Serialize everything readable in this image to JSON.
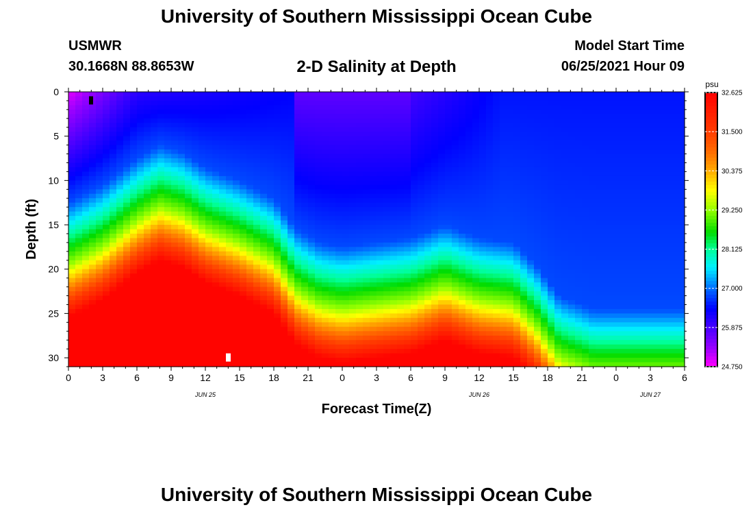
{
  "header": {
    "title": "University of Southern Mississippi Ocean Cube",
    "station": "USMWR",
    "coordinates": "30.1668N  88.8653W",
    "subtitle": "2-D Salinity at Depth",
    "start_label": "Model Start Time",
    "start_time": "06/25/2021 Hour 09"
  },
  "footer": {
    "title": "University of Southern Mississippi Ocean Cube"
  },
  "chart_data": {
    "type": "heatmap",
    "title": "2-D Salinity at Depth",
    "xlabel": "Forecast Time(Z)",
    "ylabel": "Depth (ft)",
    "x_range_hours": [
      0,
      54
    ],
    "y_range_ft": [
      0,
      31
    ],
    "x_tick_labels": [
      "0",
      "3",
      "6",
      "9",
      "12",
      "15",
      "18",
      "21",
      "0",
      "3",
      "6",
      "9",
      "12",
      "15",
      "18",
      "21",
      "0",
      "3",
      "6"
    ],
    "date_labels": [
      {
        "hour": 12,
        "label": "JUN 25"
      },
      {
        "hour": 36,
        "label": "JUN 26"
      },
      {
        "hour": 51,
        "label": "JUN 27"
      }
    ],
    "y_ticks": [
      0,
      5,
      10,
      15,
      20,
      25,
      30
    ],
    "colorbar": {
      "units": "psu",
      "min": 24.75,
      "max": 32.625,
      "tick_labels": [
        "32.625",
        "31.500",
        "30.375",
        "29.250",
        "28.125",
        "27.000",
        "25.875",
        "24.750"
      ]
    },
    "isohaline_29psu_depth_ft": [
      {
        "hour": 0,
        "depth": 19.5
      },
      {
        "hour": 3,
        "depth": 17.5
      },
      {
        "hour": 6,
        "depth": 14.5
      },
      {
        "hour": 8,
        "depth": 13.0
      },
      {
        "hour": 10,
        "depth": 13.8
      },
      {
        "hour": 12,
        "depth": 15.5
      },
      {
        "hour": 15,
        "depth": 17.0
      },
      {
        "hour": 18,
        "depth": 19.0
      },
      {
        "hour": 20,
        "depth": 22.5
      },
      {
        "hour": 22,
        "depth": 24.0
      },
      {
        "hour": 24,
        "depth": 24.5
      },
      {
        "hour": 27,
        "depth": 24.0
      },
      {
        "hour": 30,
        "depth": 23.5
      },
      {
        "hour": 33,
        "depth": 22.0
      },
      {
        "hour": 36,
        "depth": 23.5
      },
      {
        "hour": 39,
        "depth": 24.0
      },
      {
        "hour": 41,
        "depth": 26.5
      },
      {
        "hour": 43,
        "depth": 30.0
      },
      {
        "hour": 46,
        "depth": 31.5
      },
      {
        "hour": 54,
        "depth": 31.5
      }
    ],
    "surface_layer_note": "high salinity (>31.5 psu) below isohaline; low salinity (~25-26 psu) near surface"
  }
}
